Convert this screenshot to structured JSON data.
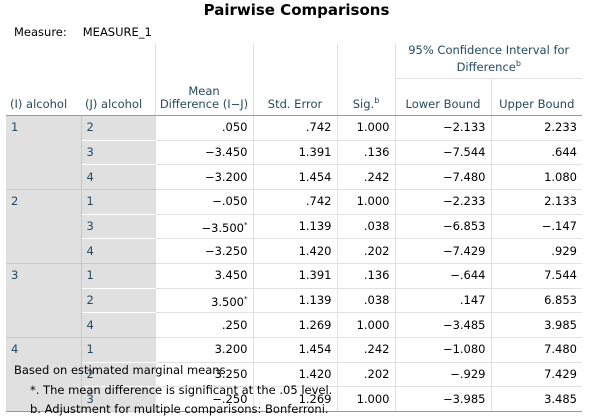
{
  "title": "Pairwise Comparisons",
  "measure": {
    "label": "Measure:",
    "value": "MEASURE_1"
  },
  "headers": {
    "i": "(I) alcohol",
    "j": "(J) alcohol",
    "mean_diff": "Mean Difference (I−J)",
    "std_error": "Std. Error",
    "sig": "Sig.",
    "sig_sup": "b",
    "ci": "95% Confidence Interval for Difference",
    "ci_sup": "b",
    "lower": "Lower Bound",
    "upper": "Upper Bound"
  },
  "groups": [
    {
      "i": "1",
      "rows": [
        {
          "j": "2",
          "mean": ".050",
          "sig_mark": "",
          "se": ".742",
          "sig": "1.000",
          "lower": "−2.133",
          "upper": "2.233"
        },
        {
          "j": "3",
          "mean": "−3.450",
          "sig_mark": "",
          "se": "1.391",
          "sig": ".136",
          "lower": "−7.544",
          "upper": ".644"
        },
        {
          "j": "4",
          "mean": "−3.200",
          "sig_mark": "",
          "se": "1.454",
          "sig": ".242",
          "lower": "−7.480",
          "upper": "1.080"
        }
      ]
    },
    {
      "i": "2",
      "rows": [
        {
          "j": "1",
          "mean": "−.050",
          "sig_mark": "",
          "se": ".742",
          "sig": "1.000",
          "lower": "−2.233",
          "upper": "2.133"
        },
        {
          "j": "3",
          "mean": "−3.500",
          "sig_mark": "*",
          "se": "1.139",
          "sig": ".038",
          "lower": "−6.853",
          "upper": "−.147"
        },
        {
          "j": "4",
          "mean": "−3.250",
          "sig_mark": "",
          "se": "1.420",
          "sig": ".202",
          "lower": "−7.429",
          "upper": ".929"
        }
      ]
    },
    {
      "i": "3",
      "rows": [
        {
          "j": "1",
          "mean": "3.450",
          "sig_mark": "",
          "se": "1.391",
          "sig": ".136",
          "lower": "−.644",
          "upper": "7.544"
        },
        {
          "j": "2",
          "mean": "3.500",
          "sig_mark": "*",
          "se": "1.139",
          "sig": ".038",
          "lower": ".147",
          "upper": "6.853"
        },
        {
          "j": "4",
          "mean": ".250",
          "sig_mark": "",
          "se": "1.269",
          "sig": "1.000",
          "lower": "−3.485",
          "upper": "3.985"
        }
      ]
    },
    {
      "i": "4",
      "rows": [
        {
          "j": "1",
          "mean": "3.200",
          "sig_mark": "",
          "se": "1.454",
          "sig": ".242",
          "lower": "−1.080",
          "upper": "7.480"
        },
        {
          "j": "2",
          "mean": "3.250",
          "sig_mark": "",
          "se": "1.420",
          "sig": ".202",
          "lower": "−.929",
          "upper": "7.429"
        },
        {
          "j": "3",
          "mean": "−.250",
          "sig_mark": "",
          "se": "1.269",
          "sig": "1.000",
          "lower": "−3.985",
          "upper": "3.485"
        }
      ]
    }
  ],
  "footnotes": {
    "basis": "Based on estimated marginal means",
    "star": "*. The mean difference is significant at the .05 level.",
    "b": "b. Adjustment for multiple comparisons: Bonferroni."
  }
}
